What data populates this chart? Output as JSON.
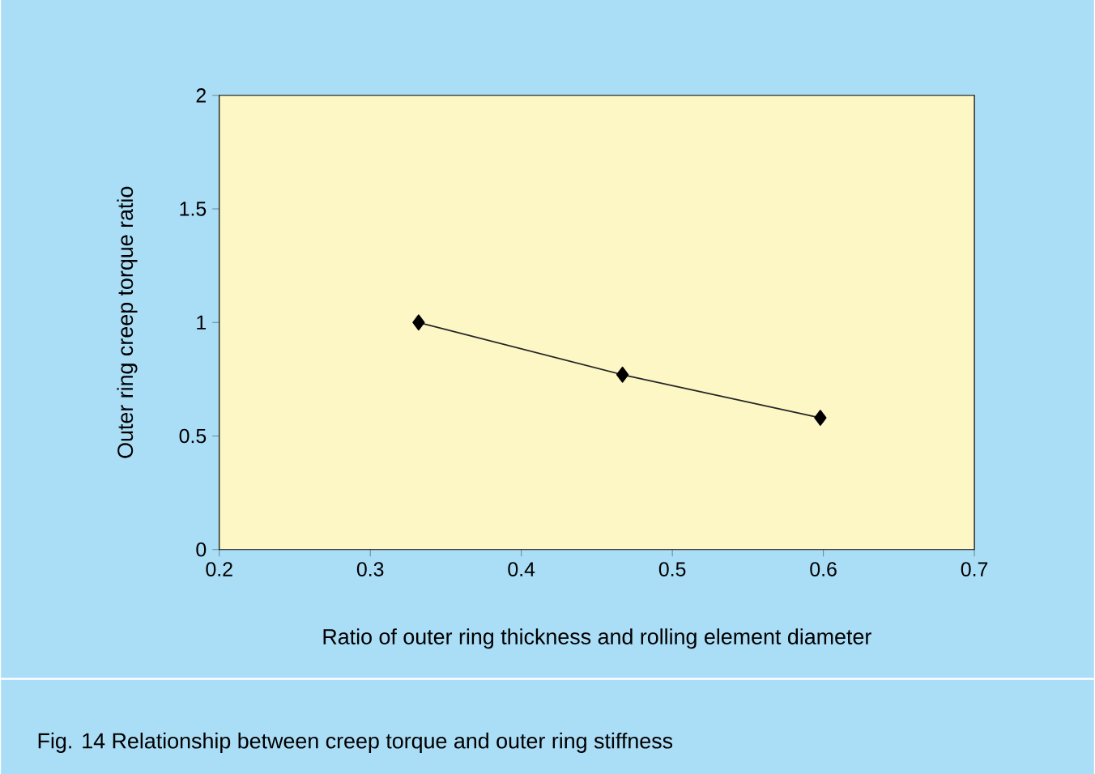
{
  "chart_data": {
    "type": "line",
    "xlabel": "Ratio of outer ring thickness and rolling element diameter",
    "ylabel": "Outer ring creep torque ratio",
    "annotations": [
      "Fig. 14  Relationship between creep torque and outer ring stiffness"
    ],
    "series": [
      {
        "x": [
          0.332,
          0.467,
          0.598
        ],
        "values": [
          1.0,
          0.77,
          0.58
        ],
        "color": "#262626"
      }
    ],
    "marker": "diamond",
    "line_style": "solid",
    "grid": false,
    "xlim": [
      0.2,
      0.7
    ],
    "xticks": [
      0.2,
      0.3,
      0.4,
      0.5,
      0.6,
      0.7
    ],
    "ylim": [
      0,
      2
    ],
    "yticks": [
      0,
      0.5,
      1,
      1.5,
      2
    ]
  }
}
